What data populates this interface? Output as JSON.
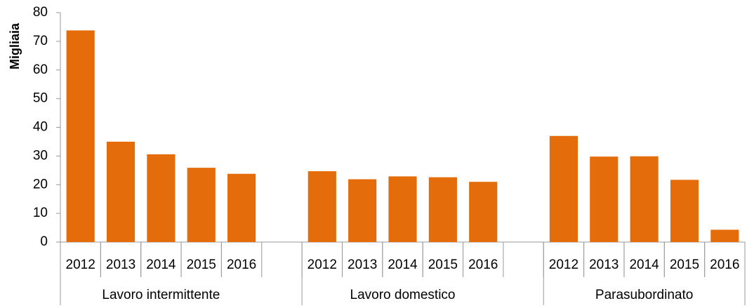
{
  "chart_data": {
    "type": "bar",
    "y_label": "Migliaia",
    "categories": [
      "2012",
      "2013",
      "2014",
      "2015",
      "2016",
      null,
      "2012",
      "2013",
      "2014",
      "2015",
      "2016",
      null,
      "2012",
      "2013",
      "2014",
      "2015",
      "2016"
    ],
    "values": [
      73.8,
      35,
      30.6,
      25.9,
      23.8,
      null,
      24.7,
      21.9,
      22.9,
      22.6,
      21,
      null,
      37,
      29.8,
      29.9,
      21.7,
      4.3
    ],
    "groups": [
      "Lavoro intermittente",
      "Lavoro domestico",
      "Parasubordinato"
    ],
    "color": "#e46c0a",
    "ylim": [
      0,
      80
    ],
    "yticks": [
      0,
      10,
      20,
      30,
      40,
      50,
      60,
      70,
      80
    ],
    "grid": false
  }
}
